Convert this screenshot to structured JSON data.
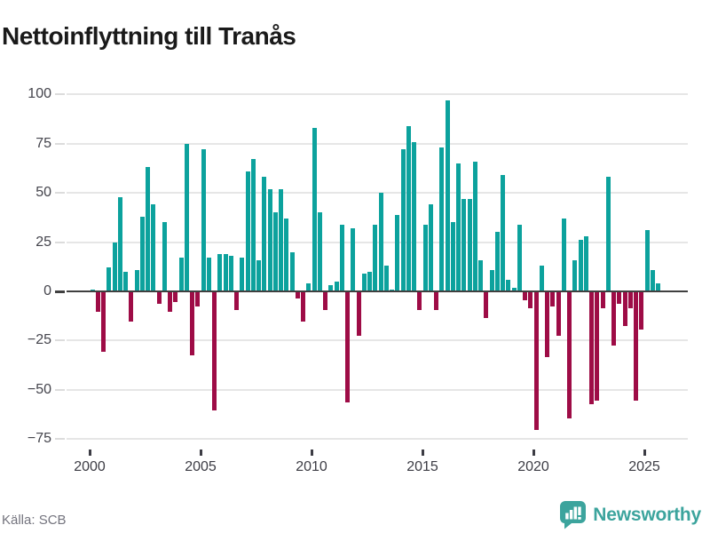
{
  "header": {
    "title": "Nettoinflyttning till Tranås"
  },
  "footer": {
    "source": "Källa: SCB",
    "brand": "Newsworthy"
  },
  "icons": {
    "brand_icon": "bar-chart-speech-bubble"
  },
  "colors": {
    "positive": "#0ca29d",
    "negative": "#9e0c46",
    "gridline": "#e6e6e6",
    "zero_line": "#404040",
    "brand": "#3ca49d"
  },
  "chart_data": {
    "type": "bar",
    "title": "Nettoinflyttning till Tranås",
    "xlabel": "",
    "ylabel": "",
    "ylim": [
      -75,
      100
    ],
    "grid": true,
    "legend": "none",
    "y_ticks": [
      100,
      75,
      50,
      25,
      0,
      -25,
      -50,
      -75
    ],
    "x_tick_labels": [
      "2000",
      "2005",
      "2010",
      "2015",
      "2020",
      "2025"
    ],
    "x": [
      "2000Q1",
      "2000Q2",
      "2000Q3",
      "2000Q4",
      "2001Q1",
      "2001Q2",
      "2001Q3",
      "2001Q4",
      "2002Q1",
      "2002Q2",
      "2002Q3",
      "2002Q4",
      "2003Q1",
      "2003Q2",
      "2003Q3",
      "2003Q4",
      "2004Q1",
      "2004Q2",
      "2004Q3",
      "2004Q4",
      "2005Q1",
      "2005Q2",
      "2005Q3",
      "2005Q4",
      "2006Q1",
      "2006Q2",
      "2006Q3",
      "2006Q4",
      "2007Q1",
      "2007Q2",
      "2007Q3",
      "2007Q4",
      "2008Q1",
      "2008Q2",
      "2008Q3",
      "2008Q4",
      "2009Q1",
      "2009Q2",
      "2009Q3",
      "2009Q4",
      "2010Q1",
      "2010Q2",
      "2010Q3",
      "2010Q4",
      "2011Q1",
      "2011Q2",
      "2011Q3",
      "2011Q4",
      "2012Q1",
      "2012Q2",
      "2012Q3",
      "2012Q4",
      "2013Q1",
      "2013Q2",
      "2013Q3",
      "2013Q4",
      "2014Q1",
      "2014Q2",
      "2014Q3",
      "2014Q4",
      "2015Q1",
      "2015Q2",
      "2015Q3",
      "2015Q4",
      "2016Q1",
      "2016Q2",
      "2016Q3",
      "2016Q4",
      "2017Q1",
      "2017Q2",
      "2017Q3",
      "2017Q4",
      "2018Q1",
      "2018Q2",
      "2018Q3",
      "2018Q4",
      "2019Q1",
      "2019Q2",
      "2019Q3",
      "2019Q4",
      "2020Q1",
      "2020Q2",
      "2020Q3",
      "2020Q4",
      "2021Q1",
      "2021Q2",
      "2021Q3",
      "2021Q4",
      "2022Q1",
      "2022Q2",
      "2022Q3",
      "2022Q4",
      "2023Q1",
      "2023Q2",
      "2023Q3",
      "2023Q4",
      "2024Q1",
      "2024Q2",
      "2024Q3",
      "2024Q4",
      "2025Q1",
      "2025Q2",
      "2025Q3"
    ],
    "values": [
      1,
      -10,
      -30,
      12,
      25,
      48,
      10,
      -15,
      11,
      38,
      63,
      44,
      -6,
      35,
      -10,
      -5,
      17,
      75,
      -32,
      -7,
      72,
      17,
      -60,
      19,
      19,
      18,
      -9,
      17,
      61,
      67,
      16,
      58,
      52,
      40,
      52,
      37,
      20,
      -3,
      -15,
      4,
      83,
      40,
      -9,
      3,
      5,
      34,
      -56,
      32,
      -22,
      9,
      10,
      34,
      50,
      13,
      1,
      39,
      72,
      84,
      76,
      -9,
      34,
      44,
      -9,
      73,
      97,
      35,
      65,
      47,
      47,
      66,
      16,
      -13,
      11,
      30,
      59,
      6,
      2,
      34,
      -4,
      -8,
      -70,
      13,
      -33,
      -7,
      -22,
      37,
      -64,
      16,
      26,
      28,
      -57,
      -55,
      -8,
      58,
      -27,
      -6,
      -17,
      -8,
      -55,
      -19,
      31,
      11,
      4
    ]
  }
}
